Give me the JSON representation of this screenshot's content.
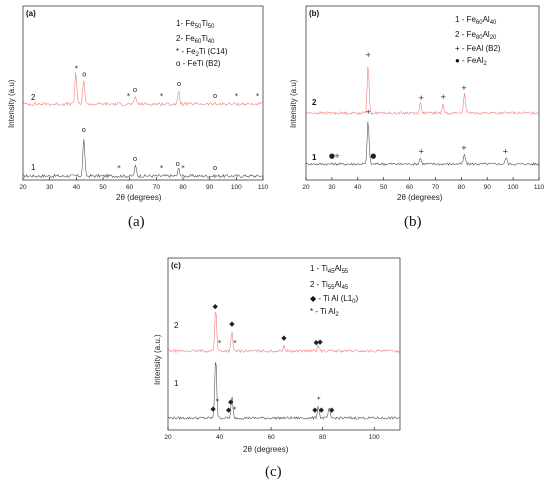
{
  "chart_data": [
    {
      "type": "line",
      "panel": "(a)",
      "caption": "(a)",
      "xlabel": "2θ (degrees)",
      "ylabel": "Intensity (a.u)",
      "xlim": [
        20,
        110
      ],
      "xticks": [
        20,
        30,
        40,
        50,
        60,
        70,
        80,
        90,
        100,
        110
      ],
      "legend": [
        "1- Fe50Ti50",
        "2- Fe60Ti40",
        "* - Fe2Ti (C14)",
        "o - FeTi (B2)"
      ],
      "series": [
        {
          "name": "1",
          "color": "#555555",
          "peaks": [
            [
              42.8,
              1.0
            ],
            [
              62.2,
              0.28
            ],
            [
              78.4,
              0.2
            ]
          ]
        },
        {
          "name": "2",
          "color": "#f08080",
          "peaks": [
            [
              39.8,
              0.9
            ],
            [
              42.8,
              0.7
            ],
            [
              62.2,
              0.2
            ],
            [
              78.4,
              0.35
            ]
          ]
        }
      ],
      "trace_labels": [
        "1",
        "2"
      ],
      "markers": [
        {
          "series": "2",
          "x": 40.0,
          "sym": "*"
        },
        {
          "series": "2",
          "x": 43.0,
          "sym": "o"
        },
        {
          "series": "2",
          "x": 59.5,
          "sym": "*"
        },
        {
          "series": "2",
          "x": 62.0,
          "sym": "o"
        },
        {
          "series": "2",
          "x": 72.0,
          "sym": "*"
        },
        {
          "series": "2",
          "x": 78.5,
          "sym": "o"
        },
        {
          "series": "2",
          "x": 92.0,
          "sym": "o"
        },
        {
          "series": "2",
          "x": 100.0,
          "sym": "*"
        },
        {
          "series": "2",
          "x": 108.0,
          "sym": "*"
        },
        {
          "series": "1",
          "x": 42.8,
          "sym": "o"
        },
        {
          "series": "1",
          "x": 56.0,
          "sym": "*"
        },
        {
          "series": "1",
          "x": 62.0,
          "sym": "o"
        },
        {
          "series": "1",
          "x": 72.0,
          "sym": "*"
        },
        {
          "series": "1",
          "x": 78.0,
          "sym": "o"
        },
        {
          "series": "1",
          "x": 80.0,
          "sym": "*"
        },
        {
          "series": "1",
          "x": 92.0,
          "sym": "o"
        }
      ]
    },
    {
      "type": "line",
      "panel": "(b)",
      "caption": "(b)",
      "xlabel": "2θ (degrees)",
      "ylabel": "Intensity (a.u)",
      "xlim": [
        20,
        110
      ],
      "xticks": [
        20,
        30,
        40,
        50,
        60,
        70,
        80,
        90,
        100,
        110
      ],
      "legend": [
        "1 - Fe60Al40",
        "2 - Fe80Al20",
        "+ - FeAl (B2)",
        "● - FeAl2"
      ],
      "series": [
        {
          "name": "1",
          "color": "#555555",
          "peaks": [
            [
              44.0,
              1.0
            ],
            [
              64.2,
              0.14
            ],
            [
              81.2,
              0.22
            ],
            [
              97.3,
              0.15
            ]
          ]
        },
        {
          "name": "2",
          "color": "#f08080",
          "peaks": [
            [
              44.0,
              1.0
            ],
            [
              64.2,
              0.2
            ],
            [
              73.0,
              0.16
            ],
            [
              81.2,
              0.4
            ]
          ]
        }
      ],
      "trace_labels": [
        "1",
        "2"
      ],
      "markers": [
        {
          "series": "2",
          "x": 44.0,
          "sym": "+"
        },
        {
          "series": "2",
          "x": 64.5,
          "sym": "+"
        },
        {
          "series": "2",
          "x": 73.0,
          "sym": "+"
        },
        {
          "series": "2",
          "x": 81.0,
          "sym": "+"
        },
        {
          "series": "1",
          "x": 30.0,
          "sym": "●"
        },
        {
          "series": "1",
          "x": 32.0,
          "sym": "+"
        },
        {
          "series": "1",
          "x": 44.0,
          "sym": "+"
        },
        {
          "series": "1",
          "x": 46.0,
          "sym": "●"
        },
        {
          "series": "1",
          "x": 64.5,
          "sym": "+"
        },
        {
          "series": "1",
          "x": 81.0,
          "sym": "+"
        },
        {
          "series": "1",
          "x": 97.0,
          "sym": "+"
        }
      ]
    },
    {
      "type": "line",
      "panel": "(c)",
      "caption": "(c)",
      "xlabel": "2θ (degrees)",
      "ylabel": "Intensity (a.u.)",
      "xlim": [
        20,
        110
      ],
      "xticks": [
        20,
        40,
        60,
        80,
        100
      ],
      "legend": [
        "1 - Ti45Al55",
        "2 - Ti55Al45",
        "◆ - Ti Al (L10)",
        "* - Ti Al2"
      ],
      "series": [
        {
          "name": "1",
          "color": "#555555",
          "peaks": [
            [
              38.5,
              1.0
            ],
            [
              44.8,
              0.35
            ],
            [
              78.3,
              0.2
            ],
            [
              82.5,
              0.15
            ]
          ]
        },
        {
          "name": "2",
          "color": "#f08080",
          "peaks": [
            [
              38.5,
              0.9
            ],
            [
              44.8,
              0.4
            ],
            [
              65.0,
              0.1
            ],
            [
              78.3,
              0.12
            ]
          ]
        }
      ],
      "trace_labels": [
        "1",
        "2"
      ],
      "markers": [
        {
          "series": "2",
          "x": 38.3,
          "sym": "◆"
        },
        {
          "series": "2",
          "x": 40.0,
          "sym": "*"
        },
        {
          "series": "2",
          "x": 44.8,
          "sym": "◆"
        },
        {
          "series": "2",
          "x": 46.0,
          "sym": "*"
        },
        {
          "series": "2",
          "x": 65.0,
          "sym": "◆"
        },
        {
          "series": "2",
          "x": 77.5,
          "sym": "◆"
        },
        {
          "series": "2",
          "x": 79.0,
          "sym": "◆"
        },
        {
          "series": "1",
          "x": 37.5,
          "sym": "◆"
        },
        {
          "series": "1",
          "x": 39.2,
          "sym": "*"
        },
        {
          "series": "1",
          "x": 44.3,
          "sym": "◆"
        },
        {
          "series": "1",
          "x": 45.8,
          "sym": "*"
        },
        {
          "series": "1",
          "x": 43.5,
          "sym": "◆"
        },
        {
          "series": "1",
          "x": 77.0,
          "sym": "◆"
        },
        {
          "series": "1",
          "x": 78.5,
          "sym": "*"
        },
        {
          "series": "1",
          "x": 79.5,
          "sym": "◆"
        },
        {
          "series": "1",
          "x": 83.5,
          "sym": "◆"
        }
      ]
    }
  ]
}
